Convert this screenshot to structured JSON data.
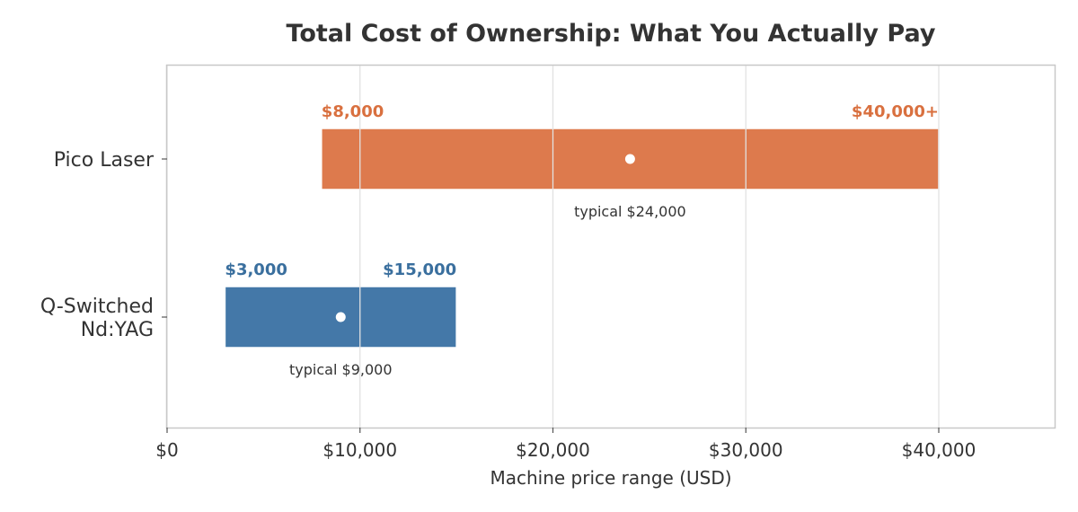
{
  "chart_data": {
    "type": "range-bar",
    "title": "Total Cost of Ownership: What You Actually Pay",
    "xlabel": "Machine price range (USD)",
    "ylabel": "",
    "xlim": [
      0,
      46000
    ],
    "x_ticks": [
      0,
      10000,
      20000,
      30000,
      40000
    ],
    "x_tick_labels": [
      "$0",
      "$10,000",
      "$20,000",
      "$30,000",
      "$40,000"
    ],
    "grid": "vertical",
    "series": [
      {
        "category_lines": [
          "Pico Laser"
        ],
        "min": 8000,
        "max": 40000,
        "typical": 24000,
        "min_label": "$8,000",
        "max_label": "$40,000+",
        "typical_label": "typical $24,000",
        "color": "#dd7a4d"
      },
      {
        "category_lines": [
          "Q-Switched",
          "Nd:YAG"
        ],
        "min": 3000,
        "max": 15000,
        "typical": 9000,
        "min_label": "$3,000",
        "max_label": "$15,000",
        "typical_label": "typical $9,000",
        "color": "#4478a8"
      }
    ],
    "label_colors": [
      "#d9703f",
      "#3a6f9e"
    ]
  }
}
